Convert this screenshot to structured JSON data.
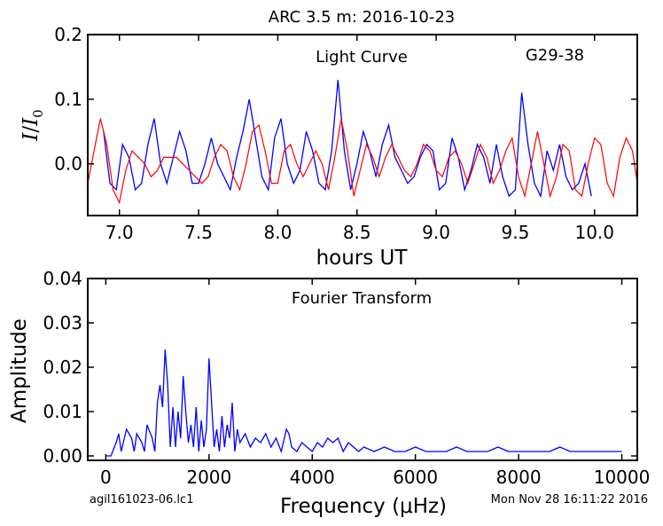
{
  "page": {
    "title": "ARC 3.5 m:  2016-10-23",
    "footer_left": "agil161023-06.lc1",
    "footer_right": "Mon Nov 28 16:11:22 2016"
  },
  "chart_data": [
    {
      "type": "line",
      "title": "",
      "annotation_left": "Light Curve",
      "annotation_right": "G29-38",
      "xlabel": "hours UT",
      "ylabel": "I/I0",
      "xlim": [
        6.8,
        10.27
      ],
      "ylim": [
        -0.08,
        0.2
      ],
      "xticks": [
        7.0,
        7.5,
        8.0,
        8.5,
        9.0,
        9.5,
        10.0
      ],
      "xtick_labels": [
        "7.0",
        "7.5",
        "8.0",
        "8.5",
        "9.0",
        "9.5",
        "10.0"
      ],
      "yticks": [
        0.0,
        0.1,
        0.2
      ],
      "ytick_labels": [
        "0.0",
        "0.1",
        "0.2"
      ],
      "series": [
        {
          "color": "#0000ff",
          "x": [
            6.9,
            6.94,
            6.98,
            7.02,
            7.06,
            7.1,
            7.14,
            7.18,
            7.22,
            7.26,
            7.3,
            7.34,
            7.38,
            7.42,
            7.46,
            7.5,
            7.54,
            7.58,
            7.62,
            7.66,
            7.7,
            7.74,
            7.78,
            7.82,
            7.86,
            7.9,
            7.94,
            7.98,
            8.02,
            8.06,
            8.1,
            8.14,
            8.18,
            8.22,
            8.26,
            8.3,
            8.34,
            8.38,
            8.42,
            8.46,
            8.5,
            8.54,
            8.58,
            8.62,
            8.66,
            8.7,
            8.74,
            8.78,
            8.82,
            8.86,
            8.9,
            8.94,
            8.98,
            9.02,
            9.06,
            9.1,
            9.14,
            9.18,
            9.22,
            9.26,
            9.3,
            9.34,
            9.38,
            9.42,
            9.46,
            9.5,
            9.54,
            9.58,
            9.62,
            9.66,
            9.7,
            9.74,
            9.78,
            9.82,
            9.86,
            9.9,
            9.94,
            9.98
          ],
          "y": [
            0.05,
            -0.03,
            -0.04,
            0.03,
            0.01,
            -0.04,
            -0.03,
            0.03,
            0.07,
            0.0,
            -0.03,
            0.01,
            0.05,
            0.02,
            -0.03,
            -0.03,
            0.0,
            0.04,
            0.0,
            -0.02,
            -0.04,
            0.01,
            0.05,
            0.1,
            0.04,
            -0.02,
            -0.04,
            0.04,
            0.07,
            0.0,
            -0.03,
            -0.01,
            0.05,
            0.02,
            -0.03,
            -0.04,
            0.02,
            0.13,
            0.02,
            -0.04,
            0.0,
            0.05,
            0.02,
            -0.02,
            0.03,
            0.06,
            0.01,
            -0.01,
            -0.03,
            -0.02,
            0.01,
            0.03,
            0.02,
            -0.04,
            -0.03,
            0.04,
            0.01,
            -0.04,
            -0.01,
            0.03,
            0.01,
            -0.03,
            0.03,
            -0.02,
            -0.05,
            -0.04,
            0.11,
            0.03,
            -0.03,
            -0.05,
            0.02,
            -0.01,
            0.03,
            -0.02,
            -0.04,
            -0.03,
            0.0,
            -0.05
          ]
        },
        {
          "color": "#ff0000",
          "x": [
            6.8,
            6.84,
            6.88,
            6.92,
            6.96,
            7.0,
            7.04,
            7.08,
            7.12,
            7.16,
            7.2,
            7.24,
            7.28,
            7.32,
            7.36,
            7.4,
            7.44,
            7.48,
            7.52,
            7.56,
            7.6,
            7.64,
            7.68,
            7.72,
            7.76,
            7.8,
            7.84,
            7.88,
            7.92,
            7.96,
            8.0,
            8.04,
            8.08,
            8.12,
            8.16,
            8.2,
            8.24,
            8.28,
            8.32,
            8.36,
            8.4,
            8.44,
            8.48,
            8.52,
            8.56,
            8.6,
            8.64,
            8.68,
            8.72,
            8.76,
            8.8,
            8.84,
            8.88,
            8.92,
            8.96,
            9.0,
            9.04,
            9.08,
            9.12,
            9.16,
            9.2,
            9.24,
            9.28,
            9.32,
            9.36,
            9.4,
            9.44,
            9.48,
            9.52,
            9.56,
            9.6,
            9.64,
            9.68,
            9.72,
            9.76,
            9.8,
            9.84,
            9.88,
            9.92,
            9.96,
            10.0,
            10.04,
            10.08,
            10.12,
            10.16,
            10.2,
            10.24,
            10.27
          ],
          "y": [
            -0.03,
            0.02,
            0.07,
            0.03,
            -0.04,
            -0.06,
            -0.01,
            0.02,
            0.01,
            0.0,
            -0.02,
            -0.01,
            0.01,
            0.01,
            0.01,
            0.0,
            -0.01,
            -0.02,
            -0.03,
            -0.02,
            0.01,
            0.03,
            0.02,
            -0.02,
            -0.04,
            0.0,
            0.05,
            0.06,
            0.02,
            -0.03,
            -0.03,
            0.02,
            0.03,
            0.0,
            -0.02,
            0.0,
            0.02,
            0.0,
            -0.04,
            0.01,
            0.07,
            0.02,
            -0.05,
            -0.01,
            0.03,
            0.01,
            -0.02,
            0.01,
            0.03,
            0.01,
            -0.01,
            -0.02,
            0.0,
            0.03,
            0.02,
            -0.01,
            -0.02,
            0.01,
            0.02,
            0.0,
            -0.03,
            0.0,
            0.03,
            0.01,
            -0.03,
            -0.01,
            0.02,
            0.04,
            -0.02,
            -0.05,
            0.0,
            0.05,
            0.0,
            -0.05,
            -0.02,
            0.03,
            0.02,
            -0.04,
            -0.05,
            0.0,
            0.04,
            0.03,
            -0.03,
            -0.05,
            0.01,
            0.04,
            0.02,
            -0.03
          ]
        }
      ]
    },
    {
      "type": "line",
      "title": "",
      "annotation": "Fourier Transform",
      "xlabel": "Frequency (μHz)",
      "ylabel": "Amplitude",
      "xlim": [
        -350,
        10300
      ],
      "ylim": [
        -0.001,
        0.04
      ],
      "xticks": [
        0,
        2000,
        4000,
        6000,
        8000,
        10000
      ],
      "xtick_labels": [
        "0",
        "2000",
        "4000",
        "6000",
        "8000",
        "10000"
      ],
      "yticks": [
        0.0,
        0.01,
        0.02,
        0.03,
        0.04
      ],
      "ytick_labels": [
        "0.00",
        "0.01",
        "0.02",
        "0.03",
        "0.04"
      ],
      "series": [
        {
          "color": "#0000ff",
          "x": [
            0,
            100,
            200,
            250,
            300,
            400,
            500,
            550,
            600,
            700,
            750,
            800,
            900,
            950,
            1000,
            1050,
            1100,
            1150,
            1200,
            1250,
            1300,
            1350,
            1400,
            1450,
            1500,
            1550,
            1600,
            1650,
            1700,
            1750,
            1800,
            1850,
            1900,
            1950,
            2000,
            2050,
            2100,
            2150,
            2200,
            2250,
            2300,
            2350,
            2400,
            2450,
            2500,
            2550,
            2600,
            2700,
            2800,
            2900,
            3000,
            3100,
            3200,
            3300,
            3400,
            3500,
            3550,
            3600,
            3700,
            3800,
            3900,
            4000,
            4100,
            4200,
            4300,
            4400,
            4500,
            4600,
            4700,
            4800,
            4900,
            5000,
            5200,
            5400,
            5600,
            5800,
            6000,
            6200,
            6400,
            6600,
            6800,
            7000,
            7200,
            7400,
            7600,
            7800,
            8000,
            8200,
            8400,
            8600,
            8800,
            9000,
            9200,
            9400,
            9600,
            9800,
            10000
          ],
          "y": [
            0.0,
            0.0,
            0.003,
            0.005,
            0.001,
            0.006,
            0.004,
            0.001,
            0.005,
            0.003,
            0.001,
            0.007,
            0.004,
            0.001,
            0.012,
            0.016,
            0.011,
            0.024,
            0.016,
            0.002,
            0.011,
            0.002,
            0.01,
            0.004,
            0.018,
            0.01,
            0.003,
            0.007,
            0.002,
            0.011,
            0.001,
            0.008,
            0.002,
            0.006,
            0.022,
            0.012,
            0.002,
            0.006,
            0.001,
            0.009,
            0.002,
            0.007,
            0.004,
            0.012,
            0.001,
            0.006,
            0.003,
            0.005,
            0.002,
            0.004,
            0.003,
            0.005,
            0.002,
            0.004,
            0.001,
            0.006,
            0.005,
            0.002,
            0.001,
            0.003,
            0.002,
            0.001,
            0.003,
            0.002,
            0.004,
            0.003,
            0.004,
            0.001,
            0.003,
            0.002,
            0.001,
            0.002,
            0.001,
            0.002,
            0.001,
            0.001,
            0.002,
            0.001,
            0.001,
            0.001,
            0.002,
            0.001,
            0.001,
            0.001,
            0.002,
            0.001,
            0.001,
            0.001,
            0.001,
            0.001,
            0.002,
            0.001,
            0.001,
            0.001,
            0.001,
            0.001,
            0.001
          ]
        }
      ]
    }
  ]
}
